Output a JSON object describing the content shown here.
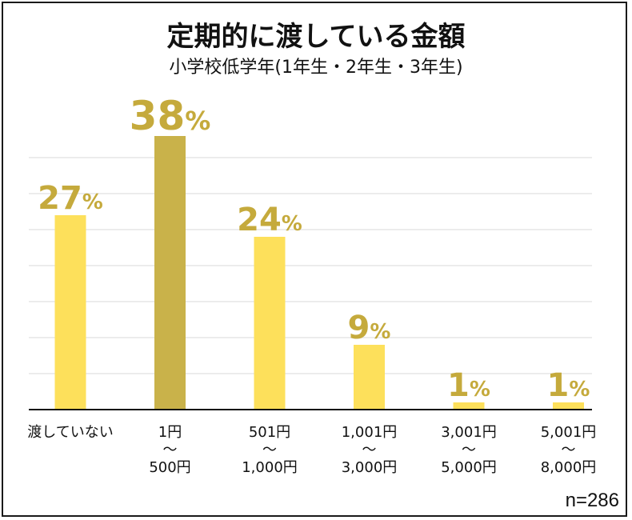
{
  "chart_data": {
    "type": "bar",
    "title": "定期的に渡している金額",
    "subtitle": "小学校低学年(1年生・2年生・3年生)",
    "categories": [
      [
        "渡していない"
      ],
      [
        "1円",
        "〜",
        "500円"
      ],
      [
        "501円",
        "〜",
        "1,000円"
      ],
      [
        "1,001円",
        "〜",
        "3,000円"
      ],
      [
        "3,001円",
        "〜",
        "5,000円"
      ],
      [
        "5,001円",
        "〜",
        "8,000円"
      ]
    ],
    "values": [
      27,
      38,
      24,
      9,
      1,
      1
    ],
    "data_labels": [
      "27%",
      "38%",
      "24%",
      "9%",
      "1%",
      "1%"
    ],
    "highlight_index": 1,
    "ylim": [
      0,
      40
    ],
    "grid": true,
    "colors": {
      "bar": "#fde05b",
      "highlight_bar": "#c9b24a",
      "label": "#c5aa3c",
      "grid": "#e6e6e6",
      "axis": "#111111"
    }
  },
  "note": "n=286"
}
